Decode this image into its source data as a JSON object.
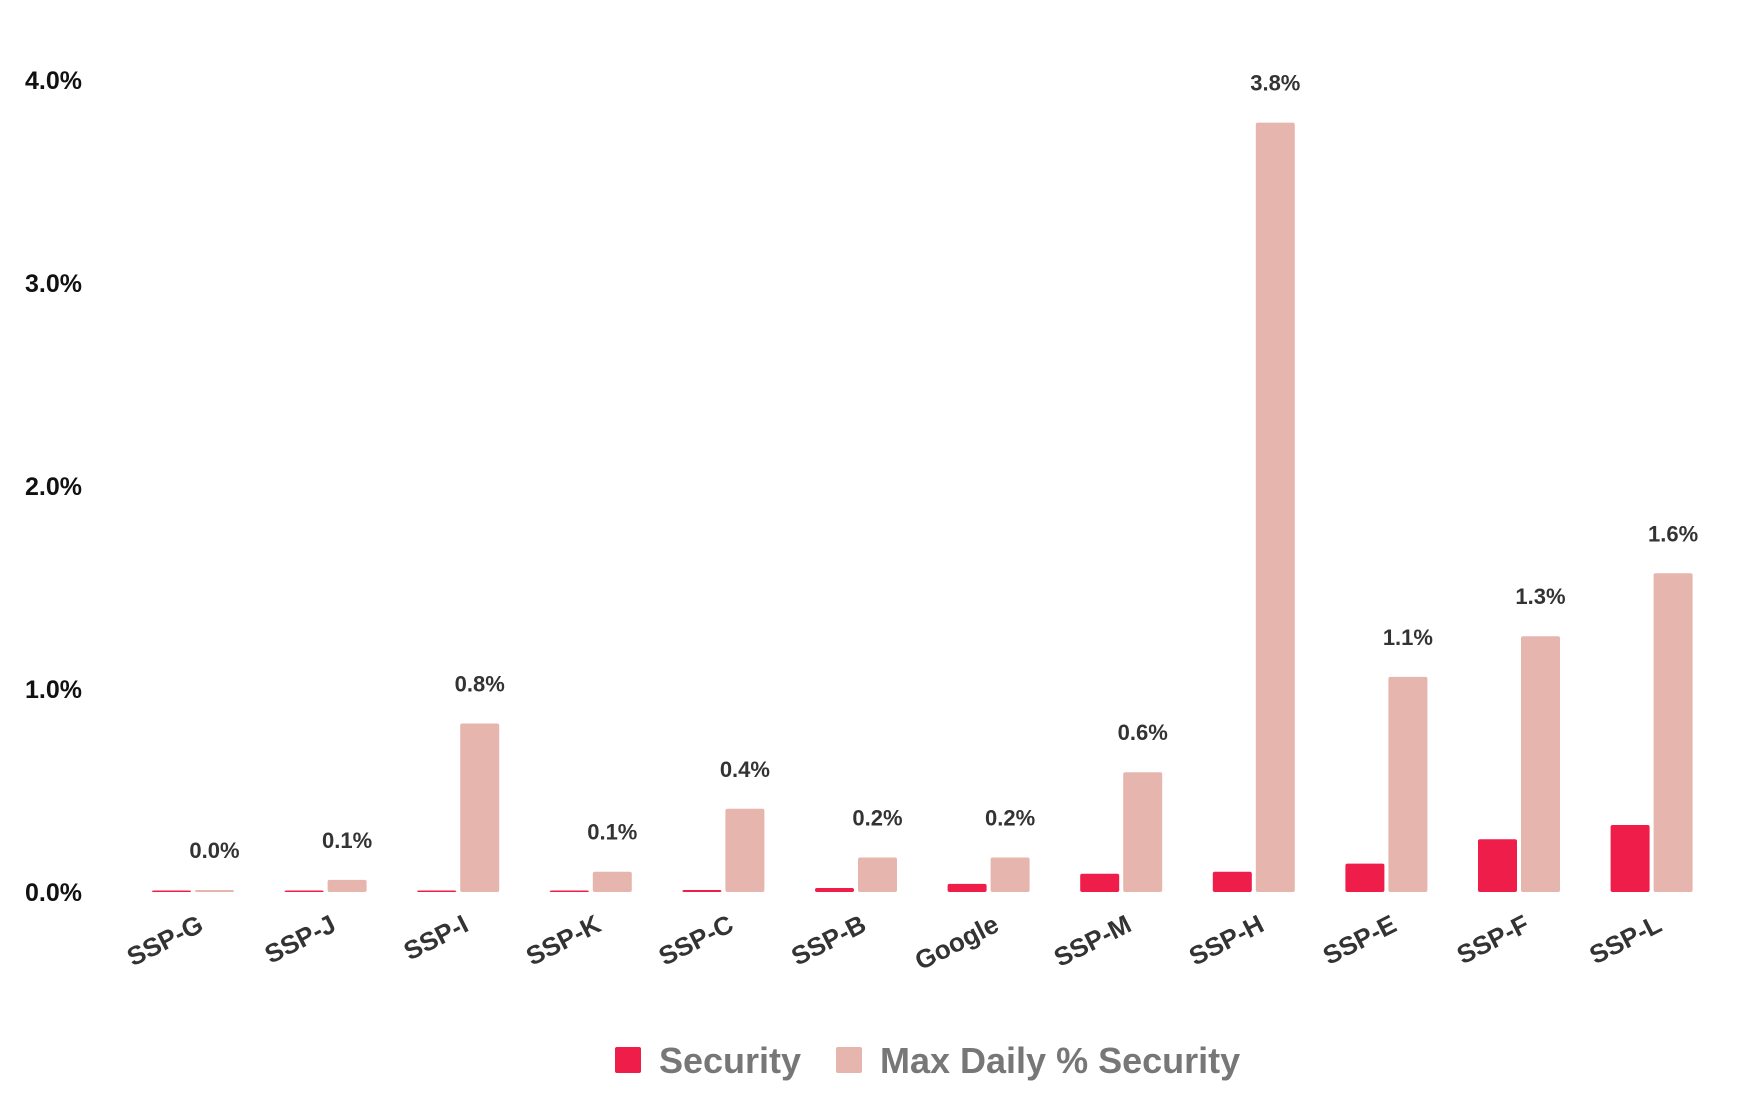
{
  "chart_data": {
    "type": "bar",
    "title": "",
    "xlabel": "",
    "ylabel": "",
    "ylim": [
      0,
      4.0
    ],
    "y_ticks": [
      "0.0%",
      "1.0%",
      "2.0%",
      "3.0%",
      "4.0%"
    ],
    "y_tick_values": [
      0,
      1,
      2,
      3,
      4
    ],
    "grid": false,
    "legend_position": "bottom",
    "categories": [
      "SSP-G",
      "SSP-J",
      "SSP-I",
      "SSP-K",
      "SSP-C",
      "SSP-B",
      "Google",
      "SSP-M",
      "SSP-H",
      "SSP-E",
      "SSP-F",
      "SSP-L"
    ],
    "series": [
      {
        "name": "Security",
        "color": "#EE1D4A",
        "values": [
          0.005,
          0.005,
          0.005,
          0.005,
          0.01,
          0.02,
          0.04,
          0.09,
          0.1,
          0.14,
          0.26,
          0.33
        ]
      },
      {
        "name": "Max Daily % Security",
        "color": "#E6B6AE",
        "values": [
          0.01,
          0.06,
          0.83,
          0.1,
          0.41,
          0.17,
          0.17,
          0.59,
          3.79,
          1.06,
          1.26,
          1.57
        ],
        "data_labels": [
          "0.0%",
          "0.1%",
          "0.8%",
          "0.1%",
          "0.4%",
          "0.2%",
          "0.2%",
          "0.6%",
          "3.8%",
          "1.1%",
          "1.3%",
          "1.6%"
        ]
      }
    ]
  }
}
